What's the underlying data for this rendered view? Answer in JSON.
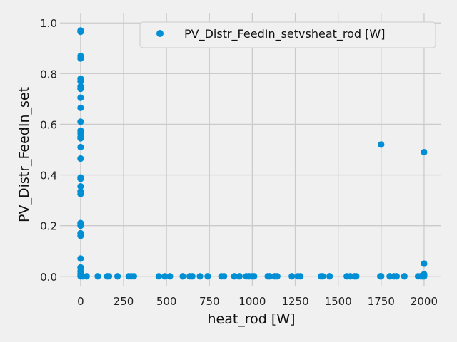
{
  "chart_data": {
    "type": "scatter",
    "title": "",
    "xlabel": "heat_rod [W]",
    "ylabel": "PV_Distr_FeedIn_set",
    "xlim": [
      -120,
      2100
    ],
    "ylim": [
      -0.04,
      1.04
    ],
    "xticks": [
      "0",
      "250",
      "500",
      "750",
      "1000",
      "1250",
      "1500",
      "1750",
      "2000"
    ],
    "yticks": [
      "0.0",
      "0.2",
      "0.4",
      "0.6",
      "0.8",
      "1.0"
    ],
    "grid": true,
    "legend": {
      "position": "top-right",
      "entries": [
        "PV_Distr_FeedIn_setvsheat_rod [W]"
      ]
    },
    "colors": {
      "series": "#008fd5",
      "grid": "#cbcbcb",
      "background": "#f0f0f0"
    },
    "series": [
      {
        "name": "PV_Distr_FeedIn_setvsheat_rod [W]",
        "points": [
          [
            0,
            0.97
          ],
          [
            0,
            0.965
          ],
          [
            0,
            0.87
          ],
          [
            0,
            0.86
          ],
          [
            0,
            0.78
          ],
          [
            0,
            0.77
          ],
          [
            0,
            0.75
          ],
          [
            0,
            0.74
          ],
          [
            0,
            0.705
          ],
          [
            0,
            0.665
          ],
          [
            0,
            0.61
          ],
          [
            0,
            0.575
          ],
          [
            0,
            0.565
          ],
          [
            0,
            0.55
          ],
          [
            0,
            0.545
          ],
          [
            0,
            0.51
          ],
          [
            0,
            0.465
          ],
          [
            0,
            0.39
          ],
          [
            0,
            0.385
          ],
          [
            0,
            0.355
          ],
          [
            0,
            0.335
          ],
          [
            0,
            0.325
          ],
          [
            0,
            0.21
          ],
          [
            0,
            0.2
          ],
          [
            0,
            0.17
          ],
          [
            0,
            0.16
          ],
          [
            0,
            0.07
          ],
          [
            0,
            0.035
          ],
          [
            0,
            0.02
          ],
          [
            0,
            0.01
          ],
          [
            0,
            0.003
          ],
          [
            0,
            0.0
          ],
          [
            12,
            0.0
          ],
          [
            35,
            0.0
          ],
          [
            100,
            0.0
          ],
          [
            155,
            0.0
          ],
          [
            165,
            0.0
          ],
          [
            215,
            0.0
          ],
          [
            280,
            0.0
          ],
          [
            295,
            0.0
          ],
          [
            310,
            0.0
          ],
          [
            455,
            0.0
          ],
          [
            490,
            0.0
          ],
          [
            520,
            0.0
          ],
          [
            595,
            0.0
          ],
          [
            635,
            0.0
          ],
          [
            650,
            0.0
          ],
          [
            695,
            0.0
          ],
          [
            740,
            0.0
          ],
          [
            820,
            0.0
          ],
          [
            835,
            0.0
          ],
          [
            895,
            0.0
          ],
          [
            925,
            0.0
          ],
          [
            965,
            0.0
          ],
          [
            980,
            0.0
          ],
          [
            995,
            0.0
          ],
          [
            1010,
            0.0
          ],
          [
            1090,
            0.0
          ],
          [
            1100,
            0.0
          ],
          [
            1130,
            0.0
          ],
          [
            1145,
            0.0
          ],
          [
            1230,
            0.0
          ],
          [
            1265,
            0.0
          ],
          [
            1280,
            0.0
          ],
          [
            1400,
            0.0
          ],
          [
            1410,
            0.0
          ],
          [
            1450,
            0.0
          ],
          [
            1550,
            0.0
          ],
          [
            1570,
            0.0
          ],
          [
            1595,
            0.0
          ],
          [
            1605,
            0.0
          ],
          [
            1745,
            0.0
          ],
          [
            1750,
            0.0
          ],
          [
            1800,
            0.0
          ],
          [
            1825,
            0.0
          ],
          [
            1840,
            0.0
          ],
          [
            1885,
            0.0
          ],
          [
            1965,
            0.0
          ],
          [
            1980,
            0.0
          ],
          [
            1990,
            0.0
          ],
          [
            2000,
            0.0
          ],
          [
            2000,
            0.003
          ],
          [
            2000,
            0.008
          ],
          [
            2000,
            0.05
          ],
          [
            2000,
            0.49
          ],
          [
            1750,
            0.52
          ]
        ]
      }
    ]
  }
}
